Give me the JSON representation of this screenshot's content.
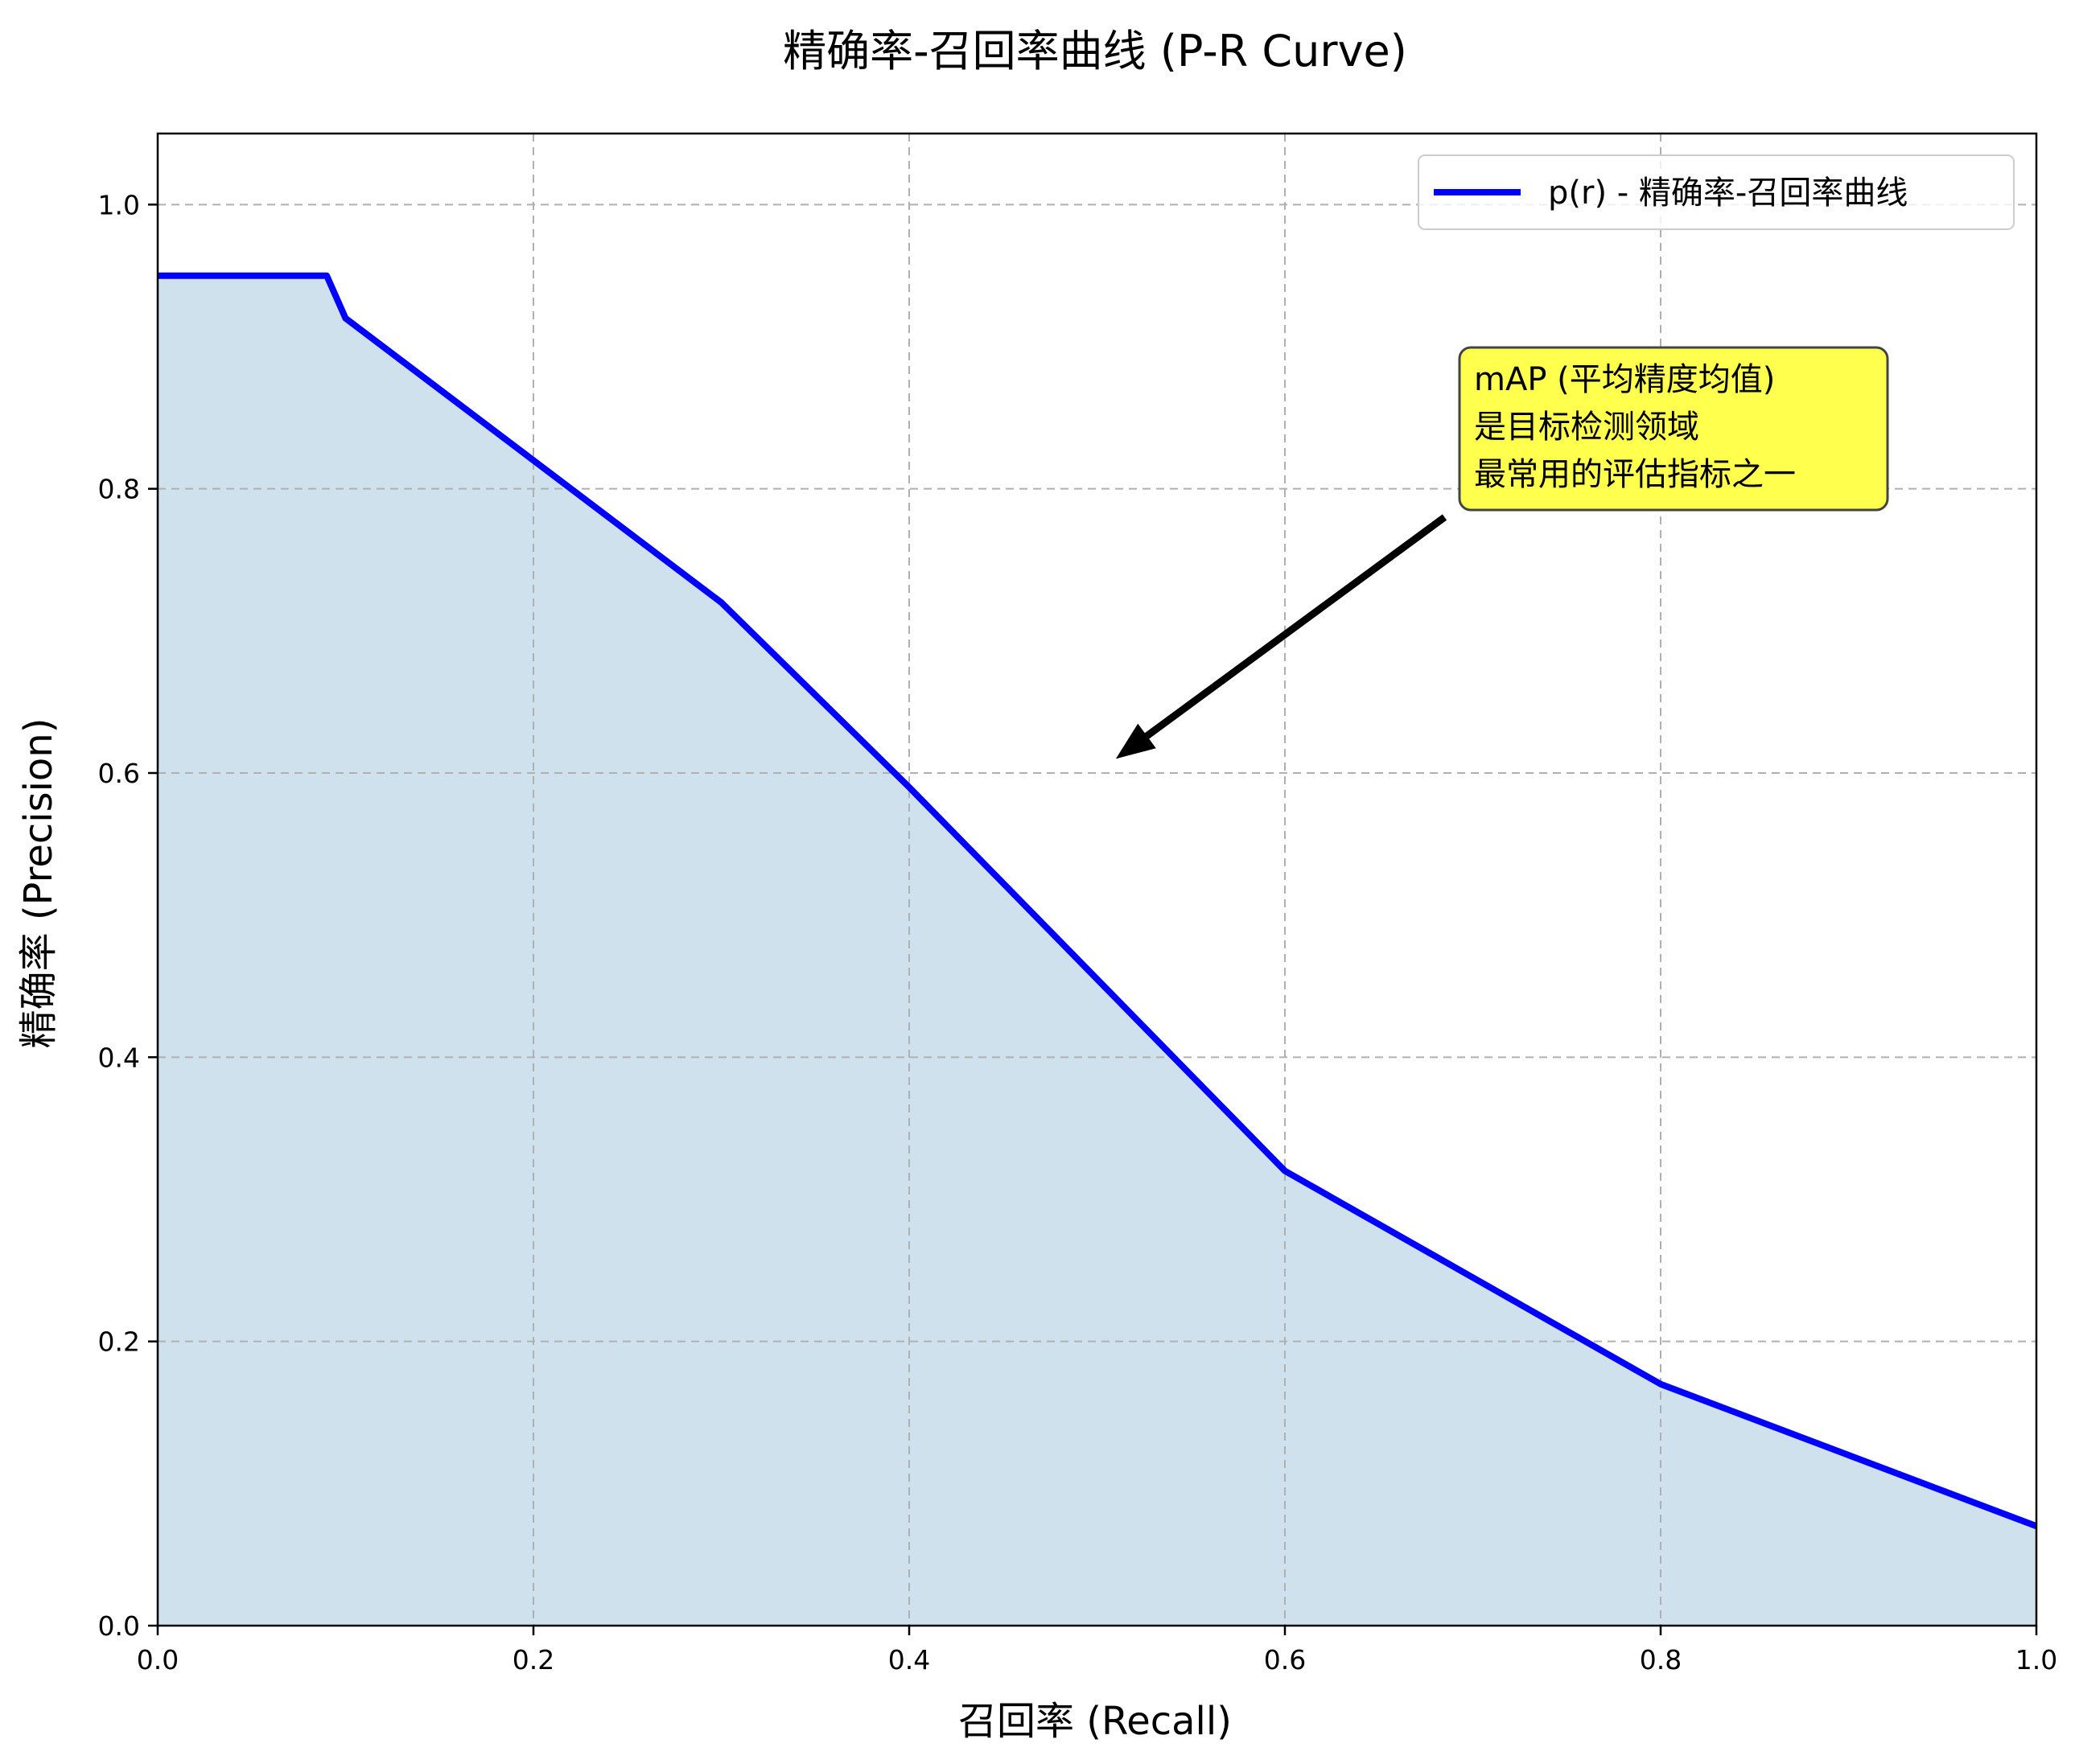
{
  "chart_data": {
    "type": "area",
    "title": "精确率-召回率曲线 (P-R Curve)",
    "xlabel": "召回率 (Recall)",
    "ylabel": "精确率 (Precision)",
    "xlim": [
      0.0,
      1.0
    ],
    "ylim": [
      0.0,
      1.05
    ],
    "xticks": [
      0.0,
      0.2,
      0.4,
      0.6,
      0.8,
      1.0
    ],
    "yticks": [
      0.0,
      0.2,
      0.4,
      0.6,
      0.8,
      1.0
    ],
    "xtick_labels": [
      "0.0",
      "0.2",
      "0.4",
      "0.6",
      "0.8",
      "1.0"
    ],
    "ytick_labels": [
      "0.0",
      "0.2",
      "0.4",
      "0.6",
      "0.8",
      "1.0"
    ],
    "grid": true,
    "legend_position": "top-right",
    "series": [
      {
        "name": "p(r) - 精确率-召回率曲线",
        "color": "#0000ff",
        "fill_color": "#d0e1ee",
        "x": [
          0.0,
          0.09,
          0.1,
          0.2,
          0.3,
          0.4,
          0.5,
          0.6,
          0.7,
          0.8,
          0.9,
          1.0
        ],
        "y": [
          0.95,
          0.95,
          0.92,
          0.82,
          0.72,
          0.59,
          0.455,
          0.32,
          0.245,
          0.17,
          0.12,
          0.07
        ]
      }
    ],
    "annotation": {
      "lines": [
        "mAP (平均精度均值)",
        "是目标检测领域",
        "最常用的评估指标之一"
      ],
      "arrow_tail": [
        0.685,
        0.78
      ],
      "arrow_head": [
        0.51,
        0.61
      ],
      "box_color": "#ffff4d"
    }
  }
}
